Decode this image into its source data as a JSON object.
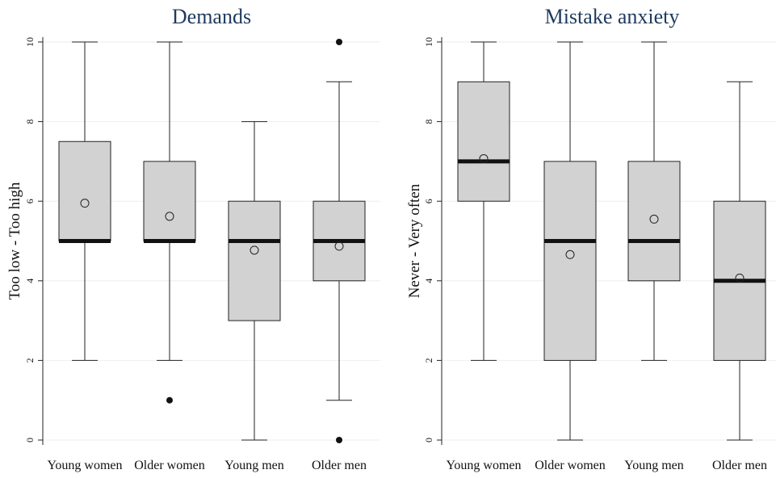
{
  "chart_data": [
    {
      "type": "box",
      "title": "Demands",
      "ylabel": "Too low - Too high",
      "ylim": [
        0,
        10
      ],
      "yticks": [
        0,
        2,
        4,
        6,
        8,
        10
      ],
      "grid": true,
      "categories": [
        "Young women",
        "Older women",
        "Young men",
        "Older men"
      ],
      "boxes": [
        {
          "whisker_low": 2,
          "q1": 5,
          "median": 5,
          "q3": 7.5,
          "whisker_high": 10,
          "mean": 5.95,
          "outliers": []
        },
        {
          "whisker_low": 2,
          "q1": 5,
          "median": 5,
          "q3": 7,
          "whisker_high": 10,
          "mean": 5.62,
          "outliers": [
            1
          ]
        },
        {
          "whisker_low": 0,
          "q1": 3,
          "median": 5,
          "q3": 6,
          "whisker_high": 8,
          "mean": 4.77,
          "outliers": []
        },
        {
          "whisker_low": 1,
          "q1": 4,
          "median": 5,
          "q3": 6,
          "whisker_high": 9,
          "mean": 4.87,
          "outliers": [
            0,
            10
          ]
        }
      ]
    },
    {
      "type": "box",
      "title": "Mistake anxiety",
      "ylabel": "Never - Very often",
      "ylim": [
        0,
        10
      ],
      "yticks": [
        0,
        2,
        4,
        6,
        8,
        10
      ],
      "grid": true,
      "categories": [
        "Young women",
        "Older women",
        "Young men",
        "Older men"
      ],
      "boxes": [
        {
          "whisker_low": 2,
          "q1": 6,
          "median": 7,
          "q3": 9,
          "whisker_high": 10,
          "mean": 7.07,
          "outliers": []
        },
        {
          "whisker_low": 0,
          "q1": 2,
          "median": 5,
          "q3": 7,
          "whisker_high": 10,
          "mean": 4.66,
          "outliers": []
        },
        {
          "whisker_low": 2,
          "q1": 4,
          "median": 5,
          "q3": 7,
          "whisker_high": 10,
          "mean": 5.55,
          "outliers": []
        },
        {
          "whisker_low": 0,
          "q1": 2,
          "median": 4,
          "q3": 6,
          "whisker_high": 9,
          "mean": 4.07,
          "outliers": []
        }
      ]
    }
  ]
}
